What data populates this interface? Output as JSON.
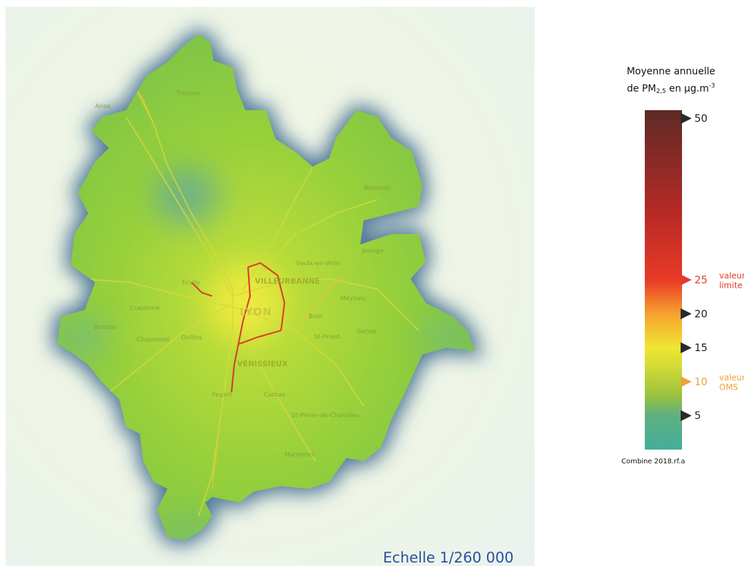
{
  "map": {
    "scale_label": "Echelle 1/260 000",
    "city_label": "LYON",
    "place_labels": {
      "villeurbanne": "VILLEURBANNE",
      "venissieux": "VÉNISSIEUX",
      "trevoux": "Trévoux",
      "montluel": "Montluel",
      "jonage": "Jonage",
      "saint_priest": "St-Priest",
      "ecully": "Ecully",
      "oullins": "Oullins",
      "brindas": "Brindas",
      "craponne": "Craponne",
      "chaponnost": "Chaponost",
      "meyzieu": "Meyzieu",
      "vaulx": "Vaulx-en-Velin",
      "bron": "Bron",
      "corbas": "Corbas",
      "feyzin": "Feyzin",
      "genas": "Genas",
      "marennes": "Marennes",
      "anse": "Anse",
      "st_pierre": "St-Pierre-de-Chandieu"
    },
    "colors": {
      "outer_glow": "#2e5f8a",
      "territory_green": "#8fcf3a",
      "hotspot_yellow": "#e7e83a",
      "road_red": "#d9302a",
      "cool_blue": "#5fa89e"
    }
  },
  "legend": {
    "title_line1": "Moyenne annuelle",
    "title_line2_prefix": "de PM",
    "title_sub": "2,5",
    "title_line2_suffix": " en µg.m",
    "title_sup": "-3",
    "min": 0,
    "max": 50,
    "ticks": [
      {
        "value": 50,
        "label": "50",
        "style": "normal"
      },
      {
        "value": 25,
        "label": "25",
        "style": "limit",
        "note_line1": "valeur",
        "note_line2": "limite"
      },
      {
        "value": 20,
        "label": "20",
        "style": "normal"
      },
      {
        "value": 15,
        "label": "15",
        "style": "normal"
      },
      {
        "value": 10,
        "label": "10",
        "style": "oms",
        "note_line1": "valeur",
        "note_line2": "OMS"
      },
      {
        "value": 5,
        "label": "5",
        "style": "normal"
      }
    ],
    "gradient": [
      {
        "value": 0,
        "color": "#44ae9a"
      },
      {
        "value": 5,
        "color": "#5db081"
      },
      {
        "value": 8,
        "color": "#9bc23f"
      },
      {
        "value": 12,
        "color": "#cfd936"
      },
      {
        "value": 15,
        "color": "#efe633"
      },
      {
        "value": 20,
        "color": "#f6a22e"
      },
      {
        "value": 25,
        "color": "#e93a26"
      },
      {
        "value": 35,
        "color": "#b62a25"
      },
      {
        "value": 50,
        "color": "#5e2a26"
      }
    ],
    "source": "Combine 2018.rf.a"
  }
}
